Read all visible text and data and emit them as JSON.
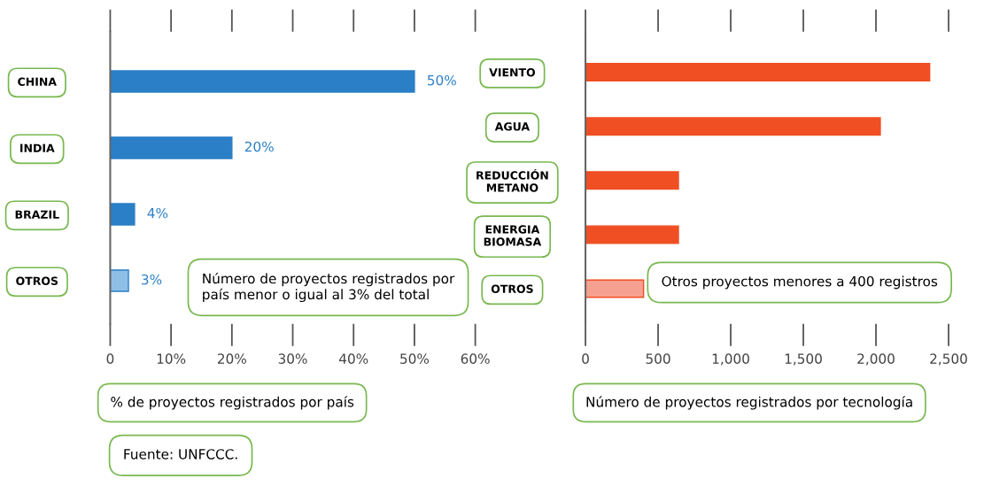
{
  "chart_data": [
    {
      "type": "bar",
      "orientation": "horizontal",
      "categories": [
        "CHINA",
        "INDIA",
        "BRAZIL",
        "OTROS"
      ],
      "series": [
        {
          "color": "#2a7fc6",
          "colors": [
            "#2a7fc6",
            "#2a7fc6",
            "#2a7fc6",
            "#8fbfe6"
          ],
          "values": [
            50,
            20,
            4,
            3
          ],
          "value_labels": [
            "50%",
            "20%",
            "4%",
            "3%"
          ]
        }
      ],
      "xlim": [
        0,
        60
      ],
      "xticks": [
        0,
        {
          "value": 10,
          "label": "10%"
        },
        {
          "value": 20,
          "label": "20%"
        },
        {
          "value": 30,
          "label": "30%"
        },
        {
          "value": 40,
          "label": "40%"
        },
        {
          "value": 50,
          "label": "50%"
        },
        {
          "value": 60,
          "label": "60%"
        }
      ],
      "xlabel": "% de proyectos registrados por país",
      "grid": false,
      "legend": false,
      "annotations": [
        "Número de proyectos registrados por país menor o igual al 3% del total",
        "Fuente: UNFCCC."
      ]
    },
    {
      "type": "bar",
      "orientation": "horizontal",
      "categories": [
        "VIENTO",
        "AGUA",
        "REDUCCIÓN\nMETANO",
        "ENERGIA\nBIOMASA",
        "OTROS"
      ],
      "series": [
        {
          "color": "#f04e23",
          "colors": [
            "#f04e23",
            "#f04e23",
            "#f04e23",
            "#f04e23",
            "#f5a090"
          ],
          "values": [
            2370,
            2030,
            640,
            640,
            400
          ]
        }
      ],
      "xlim": [
        0,
        2500
      ],
      "xticks": [
        0,
        500,
        {
          "value": 1000,
          "label": "1,000"
        },
        {
          "value": 1500,
          "label": "1,500"
        },
        {
          "value": 2000,
          "label": "2,000"
        },
        {
          "value": 2500,
          "label": "2,500"
        }
      ],
      "xlabel": "Número de proyectos registrados por tecnología",
      "grid": false,
      "legend": false,
      "annotations": [
        "Otros proyectos menores a 400 registros"
      ]
    }
  ]
}
